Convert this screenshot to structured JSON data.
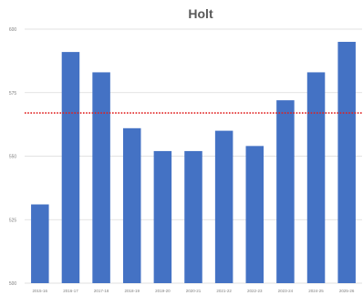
{
  "chart_data": {
    "type": "bar",
    "title": "Holt",
    "categories": [
      "2015-16",
      "2016-17",
      "2017-18",
      "2018-19",
      "2019-20",
      "2020-21",
      "2021-22",
      "2022-23",
      "2023-24",
      "2024-25",
      "2025-26"
    ],
    "values": [
      531,
      591,
      583,
      561,
      552,
      552,
      560,
      554,
      572,
      583,
      595
    ],
    "ylim": [
      500,
      600
    ],
    "yticks": [
      500,
      525,
      550,
      575,
      600
    ],
    "reference_line": {
      "value": 567,
      "color": "#e02020",
      "style": "dotted"
    },
    "bar_color": "#4472c4",
    "grid": true,
    "legend": "none"
  }
}
